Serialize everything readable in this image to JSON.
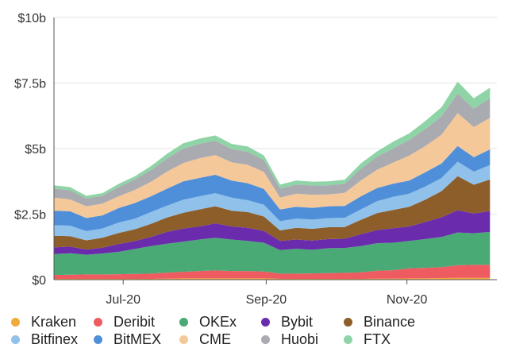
{
  "chart_data": {
    "type": "area",
    "stacked": true,
    "x": [
      "2020-06-01",
      "2020-06-08",
      "2020-06-15",
      "2020-06-22",
      "2020-06-29",
      "2020-07-06",
      "2020-07-13",
      "2020-07-20",
      "2020-07-27",
      "2020-08-03",
      "2020-08-10",
      "2020-08-17",
      "2020-08-24",
      "2020-08-31",
      "2020-09-07",
      "2020-09-14",
      "2020-09-21",
      "2020-09-28",
      "2020-10-05",
      "2020-10-12",
      "2020-10-19",
      "2020-10-26",
      "2020-11-02",
      "2020-11-09",
      "2020-11-16",
      "2020-11-23",
      "2020-11-30",
      "2020-12-07"
    ],
    "xticks": [
      {
        "date": "2020-07-01",
        "label": "Jul-20"
      },
      {
        "date": "2020-09-01",
        "label": "Sep-20"
      },
      {
        "date": "2020-11-01",
        "label": "Nov-20"
      }
    ],
    "xlim": [
      "2020-06-01",
      "2020-12-10"
    ],
    "ylim": [
      0,
      10
    ],
    "yticks": [
      {
        "value": 0,
        "label": "$0"
      },
      {
        "value": 2.5,
        "label": "$2.5b"
      },
      {
        "value": 5,
        "label": "$5b"
      },
      {
        "value": 7.5,
        "label": "$7.5b"
      },
      {
        "value": 10,
        "label": "$10b"
      }
    ],
    "ylabel": "",
    "xlabel": "",
    "grid": "horizontal",
    "legend_position": "bottom",
    "series": [
      {
        "name": "Kraken",
        "color": "#f2a93b",
        "values": [
          0.03,
          0.03,
          0.03,
          0.03,
          0.03,
          0.03,
          0.03,
          0.04,
          0.05,
          0.05,
          0.05,
          0.05,
          0.05,
          0.05,
          0.03,
          0.03,
          0.03,
          0.03,
          0.03,
          0.03,
          0.04,
          0.04,
          0.05,
          0.05,
          0.06,
          0.07,
          0.07,
          0.07
        ]
      },
      {
        "name": "Deribit",
        "color": "#ee5b60",
        "values": [
          0.15,
          0.16,
          0.17,
          0.17,
          0.18,
          0.19,
          0.2,
          0.23,
          0.25,
          0.28,
          0.3,
          0.28,
          0.28,
          0.26,
          0.2,
          0.2,
          0.21,
          0.22,
          0.23,
          0.25,
          0.3,
          0.32,
          0.38,
          0.4,
          0.42,
          0.48,
          0.5,
          0.5
        ]
      },
      {
        "name": "OKEx",
        "color": "#4aaa76",
        "values": [
          0.8,
          0.82,
          0.75,
          0.8,
          0.85,
          0.95,
          1.05,
          1.1,
          1.15,
          1.2,
          1.25,
          1.2,
          1.15,
          1.1,
          0.9,
          0.95,
          0.9,
          0.95,
          0.95,
          1.0,
          1.05,
          1.05,
          1.05,
          1.1,
          1.15,
          1.25,
          1.2,
          1.25
        ]
      },
      {
        "name": "Bybit",
        "color": "#6a2cad",
        "values": [
          0.25,
          0.25,
          0.2,
          0.22,
          0.3,
          0.3,
          0.35,
          0.45,
          0.5,
          0.5,
          0.55,
          0.5,
          0.5,
          0.45,
          0.35,
          0.35,
          0.35,
          0.35,
          0.35,
          0.45,
          0.5,
          0.55,
          0.55,
          0.65,
          0.75,
          0.85,
          0.75,
          0.8
        ]
      },
      {
        "name": "Binance",
        "color": "#8d5e2a",
        "values": [
          0.45,
          0.4,
          0.35,
          0.38,
          0.42,
          0.45,
          0.5,
          0.55,
          0.6,
          0.65,
          0.65,
          0.6,
          0.6,
          0.55,
          0.4,
          0.45,
          0.45,
          0.45,
          0.45,
          0.55,
          0.65,
          0.7,
          0.75,
          0.85,
          1.0,
          1.3,
          1.1,
          1.2
        ]
      },
      {
        "name": "Bitfinex",
        "color": "#8fc1ea",
        "values": [
          0.4,
          0.4,
          0.35,
          0.35,
          0.4,
          0.4,
          0.45,
          0.45,
          0.5,
          0.5,
          0.5,
          0.5,
          0.45,
          0.45,
          0.35,
          0.35,
          0.35,
          0.35,
          0.35,
          0.4,
          0.45,
          0.5,
          0.5,
          0.5,
          0.5,
          0.55,
          0.5,
          0.55
        ]
      },
      {
        "name": "BitMEX",
        "color": "#4f8fd9",
        "values": [
          0.55,
          0.55,
          0.5,
          0.5,
          0.55,
          0.6,
          0.6,
          0.65,
          0.7,
          0.7,
          0.7,
          0.65,
          0.65,
          0.6,
          0.45,
          0.45,
          0.45,
          0.45,
          0.45,
          0.5,
          0.5,
          0.5,
          0.5,
          0.55,
          0.55,
          0.6,
          0.55,
          0.6
        ]
      },
      {
        "name": "CME",
        "color": "#f5c89a",
        "values": [
          0.5,
          0.45,
          0.45,
          0.45,
          0.45,
          0.5,
          0.55,
          0.65,
          0.7,
          0.75,
          0.75,
          0.7,
          0.7,
          0.65,
          0.45,
          0.5,
          0.5,
          0.45,
          0.5,
          0.6,
          0.7,
          0.8,
          0.95,
          1.0,
          1.1,
          1.25,
          1.15,
          1.2
        ]
      },
      {
        "name": "Huobi",
        "color": "#a9abb0",
        "values": [
          0.35,
          0.35,
          0.3,
          0.3,
          0.35,
          0.4,
          0.45,
          0.5,
          0.55,
          0.55,
          0.55,
          0.5,
          0.5,
          0.45,
          0.35,
          0.35,
          0.35,
          0.35,
          0.35,
          0.45,
          0.5,
          0.55,
          0.6,
          0.65,
          0.7,
          0.75,
          0.7,
          0.75
        ]
      },
      {
        "name": "FTX",
        "color": "#8fd4a6",
        "values": [
          0.12,
          0.12,
          0.1,
          0.1,
          0.12,
          0.12,
          0.15,
          0.18,
          0.2,
          0.2,
          0.2,
          0.2,
          0.2,
          0.18,
          0.15,
          0.15,
          0.15,
          0.15,
          0.15,
          0.2,
          0.2,
          0.25,
          0.25,
          0.3,
          0.35,
          0.45,
          0.4,
          0.4
        ]
      }
    ]
  }
}
